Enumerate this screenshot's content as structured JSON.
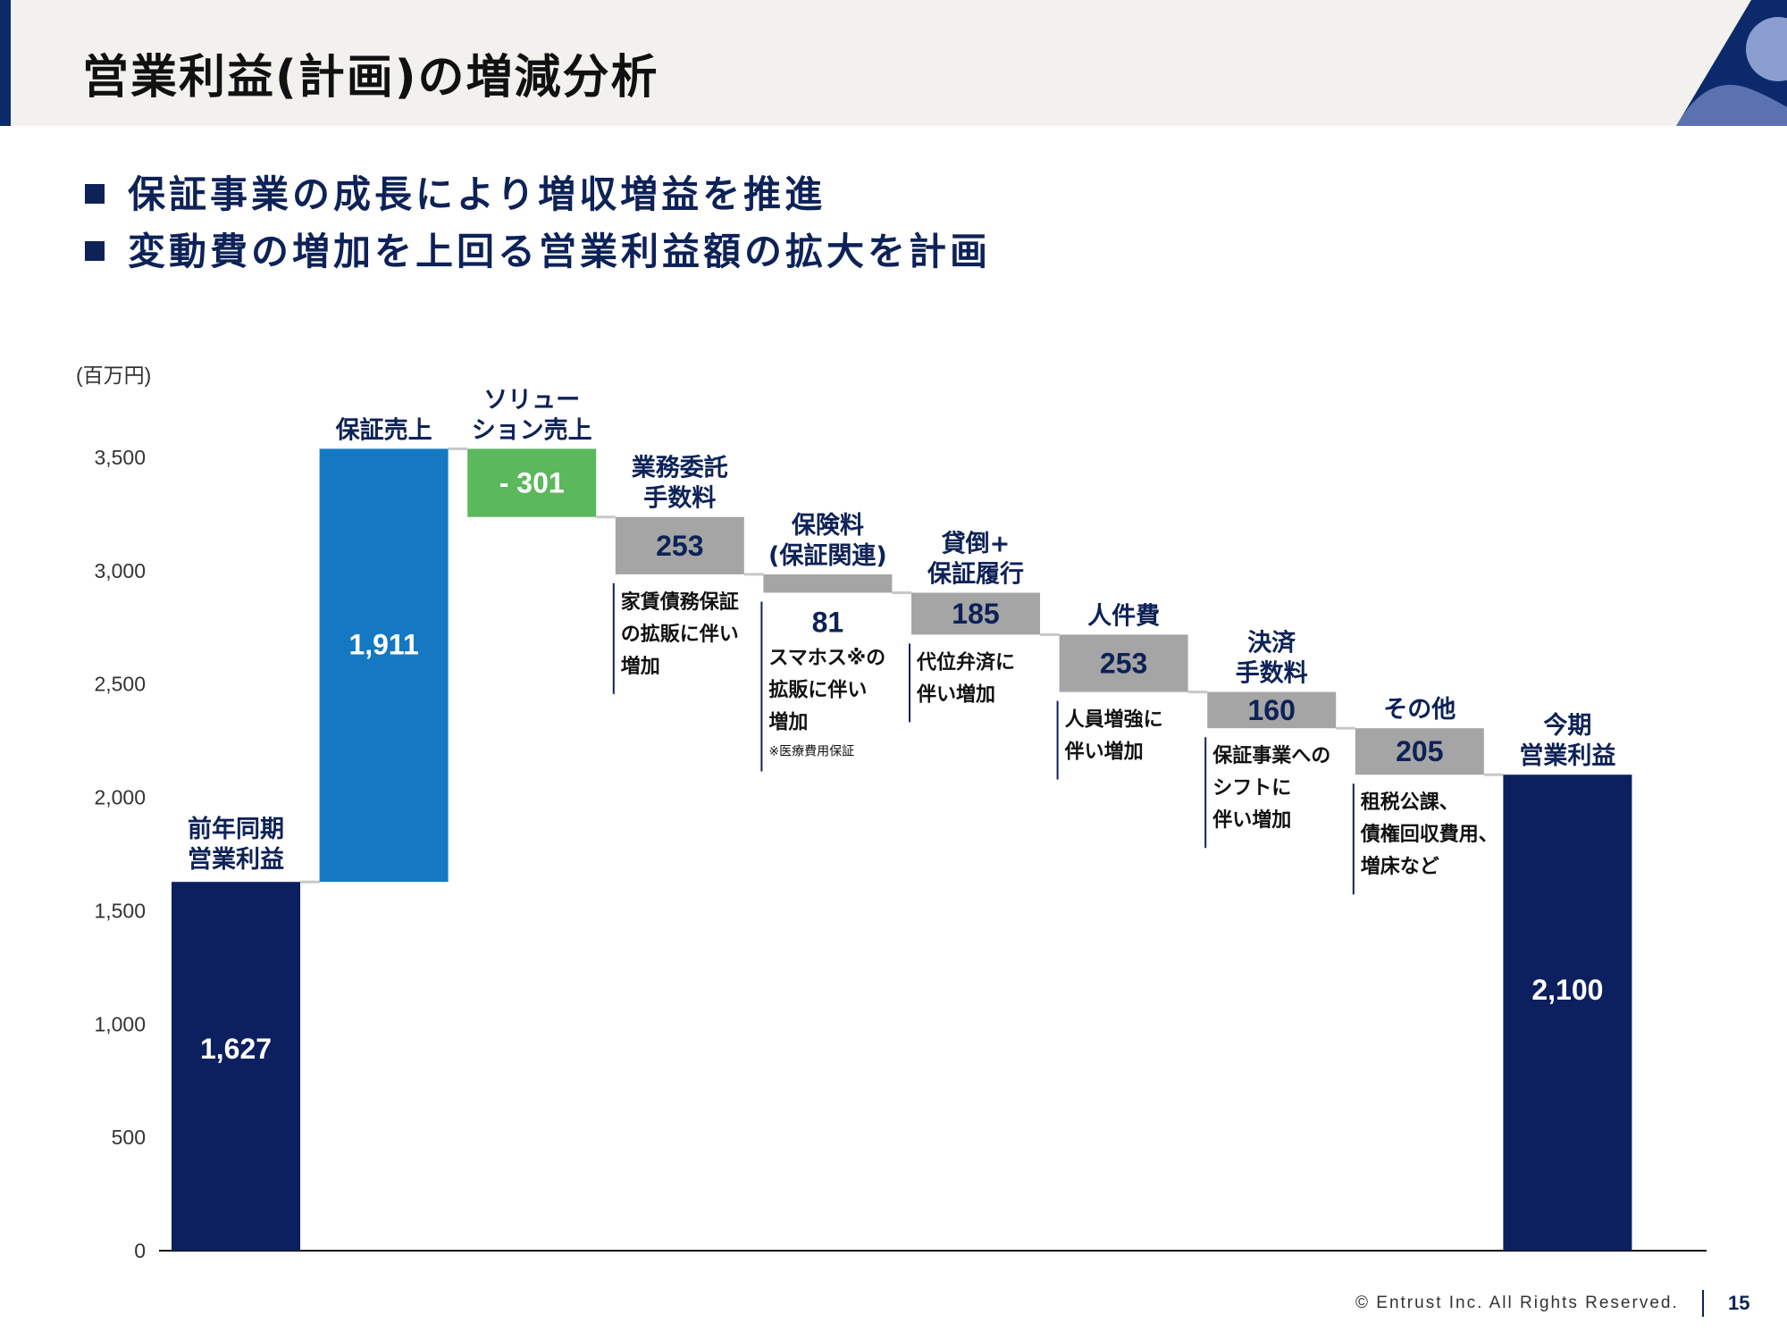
{
  "header": {
    "title": "営業利益(計画)の増減分析"
  },
  "bullets": [
    "保証事業の成長により増収増益を推進",
    "変動費の増加を上回る営業利益額の拡大を計画"
  ],
  "colors": {
    "navy": "#0c1f5e",
    "blue": "#1479c2",
    "green": "#5cb85c",
    "gray": "#a5a5a5",
    "text_navy": "#0d2257"
  },
  "chart_data": {
    "type": "bar",
    "subtype": "waterfall",
    "unit_label": "(百万円)",
    "ylim": [
      0,
      3500
    ],
    "yticks": [
      "0",
      "500",
      "1,000",
      "1,500",
      "2,000",
      "2,500",
      "3,000",
      "3,500"
    ],
    "grid": false,
    "categories": [
      {
        "label": [
          "前年同期",
          "営業利益"
        ],
        "value": 1627,
        "display": "1,627",
        "kind": "total",
        "color": "navy"
      },
      {
        "label": [
          "保証売上"
        ],
        "value": 1911,
        "display": "1,911",
        "kind": "increase",
        "color": "blue"
      },
      {
        "label": [
          "ソリュー",
          "ション売上"
        ],
        "value": -301,
        "display": "- 301",
        "kind": "decrease",
        "color": "green"
      },
      {
        "label": [
          "業務委託",
          "手数料"
        ],
        "value": -253,
        "display": "253",
        "kind": "decrease",
        "color": "gray",
        "note": [
          "家賃債務保証",
          "の拡販に伴い",
          "増加"
        ]
      },
      {
        "label": [
          "保険料",
          "(保証関連)"
        ],
        "value": -81,
        "display": "81",
        "kind": "decrease",
        "color": "gray",
        "note": [
          "スマホス※の",
          "拡販に伴い",
          "増加"
        ],
        "footnote": "※医療費用保証"
      },
      {
        "label": [
          "貸倒+",
          "保証履行"
        ],
        "value": -185,
        "display": "185",
        "kind": "decrease",
        "color": "gray",
        "note": [
          "代位弁済に",
          "伴い増加"
        ]
      },
      {
        "label": [
          "人件費"
        ],
        "value": -253,
        "display": "253",
        "kind": "decrease",
        "color": "gray",
        "note": [
          "人員増強に",
          "伴い増加"
        ]
      },
      {
        "label": [
          "決済",
          "手数料"
        ],
        "value": -160,
        "display": "160",
        "kind": "decrease",
        "color": "gray",
        "note": [
          "保証事業への",
          "シフトに",
          "伴い増加"
        ]
      },
      {
        "label": [
          "その他"
        ],
        "value": -205,
        "display": "205",
        "kind": "decrease",
        "color": "gray",
        "note": [
          "租税公課、",
          "債権回収費用、",
          "増床など"
        ]
      },
      {
        "label": [
          "今期",
          "営業利益"
        ],
        "value": 2100,
        "display": "2,100",
        "kind": "total",
        "color": "navy"
      }
    ]
  },
  "footer": {
    "copyright": "© Entrust Inc. All Rights Reserved.",
    "page": "15"
  }
}
